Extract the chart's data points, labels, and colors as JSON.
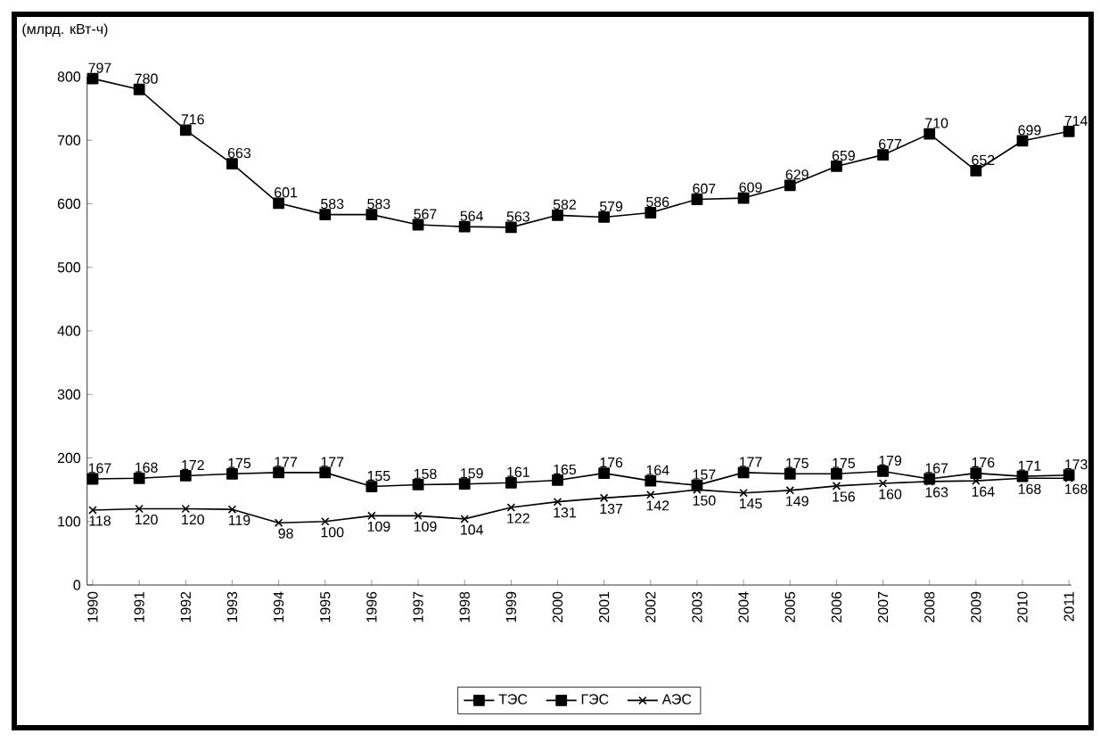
{
  "chart_data": {
    "type": "line",
    "ylabel": "(млрд. кВт-ч)",
    "categories": [
      "1990",
      "1991",
      "1992",
      "1993",
      "1994",
      "1995",
      "1996",
      "1997",
      "1998",
      "1999",
      "2000",
      "2001",
      "2002",
      "2003",
      "2004",
      "2005",
      "2006",
      "2007",
      "2008",
      "2009",
      "2010",
      "2011"
    ],
    "series": [
      {
        "name": "ТЭС",
        "color": "#000000",
        "marker": "square",
        "values": [
          797,
          780,
          716,
          663,
          601,
          583,
          583,
          567,
          564,
          563,
          582,
          579,
          586,
          607,
          609,
          629,
          659,
          677,
          710,
          652,
          699,
          714
        ]
      },
      {
        "name": "ГЭС",
        "color": "#000000",
        "marker": "square",
        "values": [
          167,
          168,
          172,
          175,
          177,
          177,
          155,
          158,
          159,
          161,
          165,
          176,
          164,
          157,
          177,
          175,
          175,
          179,
          167,
          176,
          171,
          173
        ]
      },
      {
        "name": "АЭС",
        "color": "#000000",
        "marker": "cross",
        "values": [
          118,
          120,
          120,
          119,
          98,
          100,
          109,
          109,
          104,
          122,
          131,
          137,
          142,
          150,
          145,
          149,
          156,
          160,
          163,
          164,
          168,
          168
        ]
      }
    ],
    "ylim": [
      0,
      800
    ],
    "yticks": [
      0,
      100,
      200,
      300,
      400,
      500,
      600,
      700,
      800
    ],
    "grid": false,
    "legend": "bottom",
    "data_labels": true,
    "line_style": "solid"
  }
}
